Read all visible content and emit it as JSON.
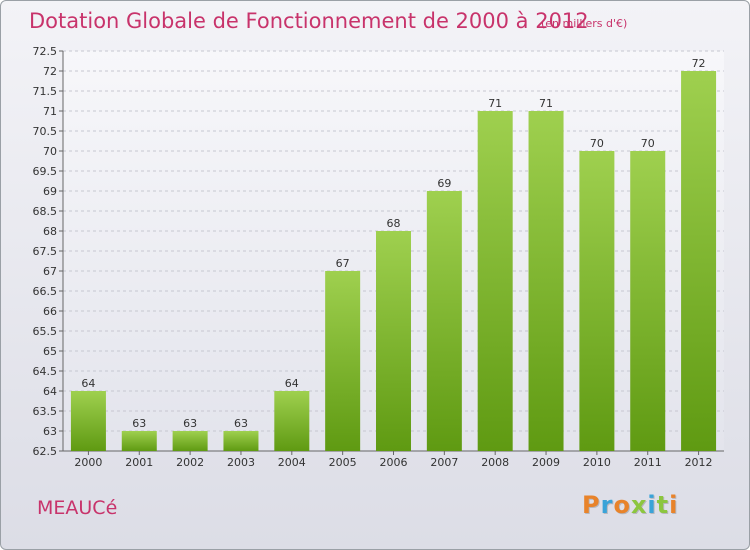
{
  "header": {
    "title": "Dotation Globale de Fonctionnement de 2000 à 2012",
    "unit": "(en milliers d'€)"
  },
  "commune": "MEAUCé",
  "logo": {
    "text": "Proxiti",
    "colors": [
      "#e8832a",
      "#3aa3d8",
      "#e8832a",
      "#8cc63f",
      "#3aa3d8",
      "#8cc63f",
      "#e8832a"
    ]
  },
  "chart_data": {
    "type": "bar",
    "title": "Dotation Globale de Fonctionnement de 2000 à 2012",
    "subtitle": "(en milliers d'€)",
    "categories": [
      "2000",
      "2001",
      "2002",
      "2003",
      "2004",
      "2005",
      "2006",
      "2007",
      "2008",
      "2009",
      "2010",
      "2011",
      "2012"
    ],
    "values": [
      64,
      63,
      63,
      63,
      64,
      67,
      68,
      69,
      71,
      71,
      70,
      70,
      72
    ],
    "data_labels": [
      "64",
      "63",
      "63",
      "63",
      "64",
      "67",
      "68",
      "69",
      "71",
      "71",
      "70",
      "70",
      "72"
    ],
    "ylim": [
      62.5,
      72.5
    ],
    "yticks": [
      "62.5",
      "63",
      "63.5",
      "64",
      "64.5",
      "65",
      "65.5",
      "66",
      "66.5",
      "67",
      "67.5",
      "68",
      "68.5",
      "69",
      "69.5",
      "70",
      "70.5",
      "71",
      "71.5",
      "72",
      "72.5"
    ],
    "grid": true,
    "colors": {
      "bar_top": "#9fd04f",
      "bar_bottom": "#5f9a12",
      "title": "#c8336b"
    }
  }
}
